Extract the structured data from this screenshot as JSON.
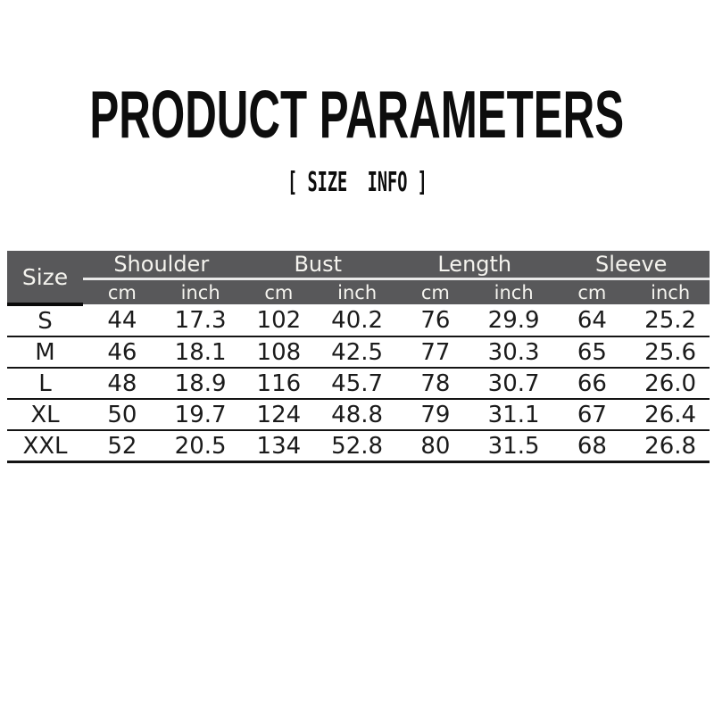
{
  "header": {
    "title": "PRODUCT PARAMETERS",
    "subtitle": "[ SIZE  INFO ]"
  },
  "colors": {
    "page_bg": "#ffffff",
    "title_text": "#0d0d0d",
    "table_header_bg": "#58585a",
    "table_header_text": "#f5f4ef",
    "unit_header_text": "#edece8",
    "header_divider": "#e9e9e9",
    "size_underline": "#0a0a0a",
    "row_divider": "#141414",
    "body_text": "#1b1b1b"
  },
  "chart_data": {
    "type": "table",
    "size_column_header": "Size",
    "measure_groups": [
      "Shoulder",
      "Bust",
      "Length",
      "Sleeve"
    ],
    "unit_headers": [
      "cm",
      "inch"
    ],
    "rows": [
      {
        "size": "S",
        "cells": [
          "44",
          "17.3",
          "102",
          "40.2",
          "76",
          "29.9",
          "64",
          "25.2"
        ]
      },
      {
        "size": "M",
        "cells": [
          "46",
          "18.1",
          "108",
          "42.5",
          "77",
          "30.3",
          "65",
          "25.6"
        ]
      },
      {
        "size": "L",
        "cells": [
          "48",
          "18.9",
          "116",
          "45.7",
          "78",
          "30.7",
          "66",
          "26.0"
        ]
      },
      {
        "size": "XL",
        "cells": [
          "50",
          "19.7",
          "124",
          "48.8",
          "79",
          "31.1",
          "67",
          "26.4"
        ]
      },
      {
        "size": "XXL",
        "cells": [
          "52",
          "20.5",
          "134",
          "52.8",
          "80",
          "31.5",
          "68",
          "26.8"
        ]
      }
    ]
  }
}
